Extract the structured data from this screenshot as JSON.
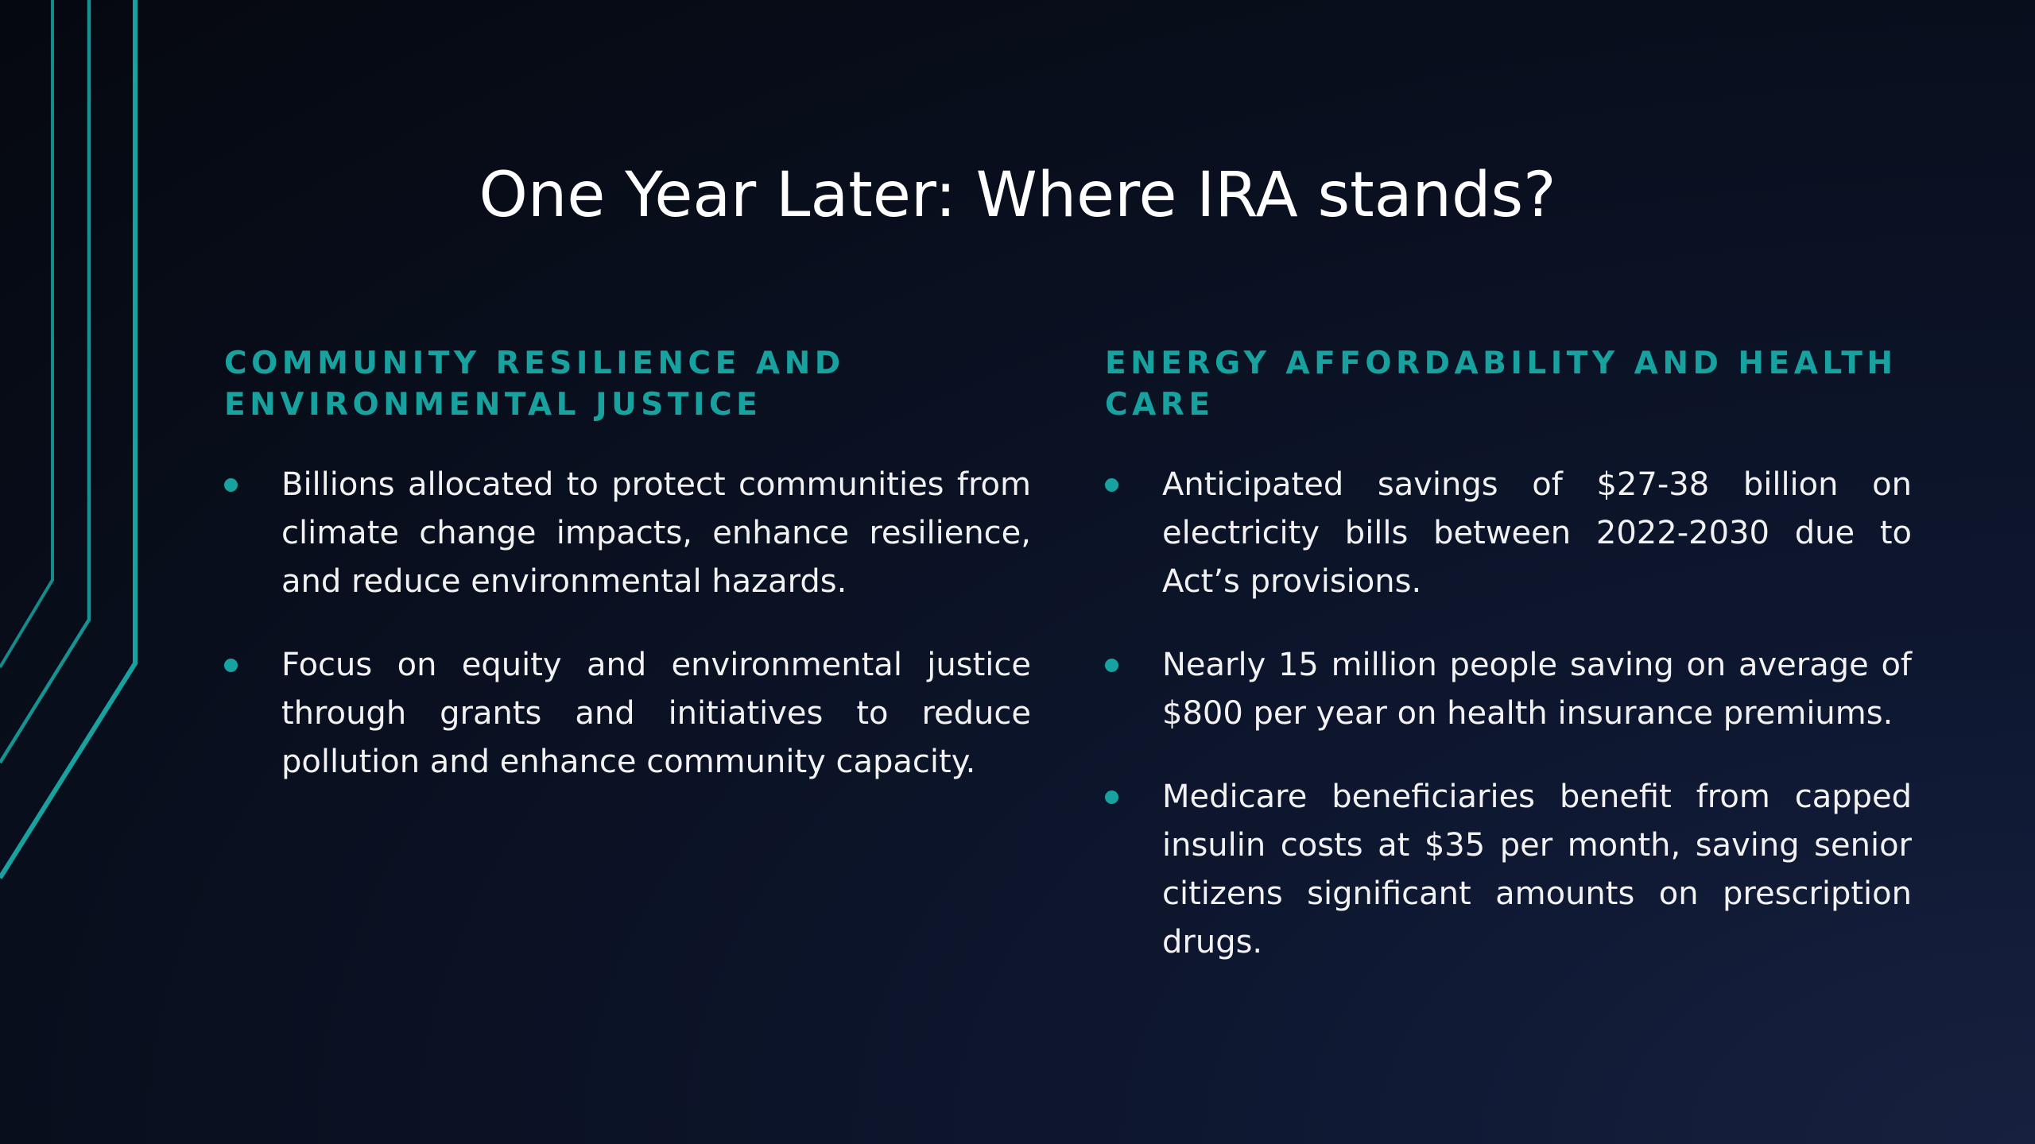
{
  "slide": {
    "title": "One Year Later: Where IRA stands?",
    "accent_color": "#17a2a0",
    "background_color": "#0a1122",
    "decoration_icon": "teal-circuit-lines-icon"
  },
  "columns": [
    {
      "heading": "COMMUNITY RESILIENCE AND ENVIRONMENTAL JUSTICE",
      "bullets": [
        "Billions allocated to protect communities from climate change impacts, enhance resilience, and reduce environmental hazards.",
        "Focus on equity and environmental justice through grants and initiatives to reduce pollution and enhance community capacity."
      ]
    },
    {
      "heading": "ENERGY AFFORDABILITY AND HEALTH CARE",
      "bullets": [
        "Anticipated savings of $27-38 billion on electricity bills between 2022-2030 due to Act’s provisions.",
        "Nearly 15 million people saving on average of $800 per year on health insurance premiums.",
        "Medicare beneficiaries benefit from capped insulin costs at $35 per month, saving senior citizens significant amounts on prescription drugs."
      ]
    }
  ]
}
